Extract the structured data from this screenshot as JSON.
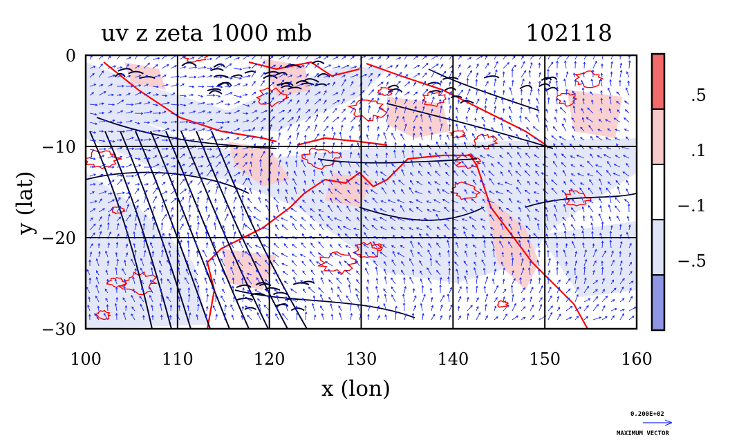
{
  "chart_data": {
    "type": "heatmap",
    "title": "uv z zeta 1000 mb",
    "timestamp": "102118",
    "xlabel": "x (lon)",
    "ylabel": "y (lat)",
    "xlim": [
      100,
      160
    ],
    "ylim": [
      -30,
      0
    ],
    "xticks": [
      {
        "value": 100,
        "label": "100"
      },
      {
        "value": 110,
        "label": "110"
      },
      {
        "value": 120,
        "label": "120"
      },
      {
        "value": 130,
        "label": "130"
      },
      {
        "value": 140,
        "label": "140"
      },
      {
        "value": 150,
        "label": "150"
      },
      {
        "value": 160,
        "label": "160"
      }
    ],
    "yticks": [
      {
        "value": 0,
        "label": "0"
      },
      {
        "value": -10,
        "label": "−10"
      },
      {
        "value": -20,
        "label": "−20"
      },
      {
        "value": -30,
        "label": "−30"
      }
    ],
    "grid": true,
    "colorbar": {
      "bins": [
        {
          "color": "#f26b6b"
        },
        {
          "color": "#f9c9c9"
        },
        {
          "color": "#ffffff"
        },
        {
          "color": "#dfe3f6"
        },
        {
          "color": "#8f97e4"
        }
      ],
      "labels": [
        ".5",
        ".1",
        "−.1",
        "−.5"
      ]
    },
    "vector_legend": {
      "magnitude_label": "0.200E+02",
      "caption": "MAXIMUM VECTOR"
    },
    "colors": {
      "positive": "#ff0000",
      "negative": "#0000cc",
      "contour": "#000033",
      "vectors": "#1a2bff"
    }
  }
}
